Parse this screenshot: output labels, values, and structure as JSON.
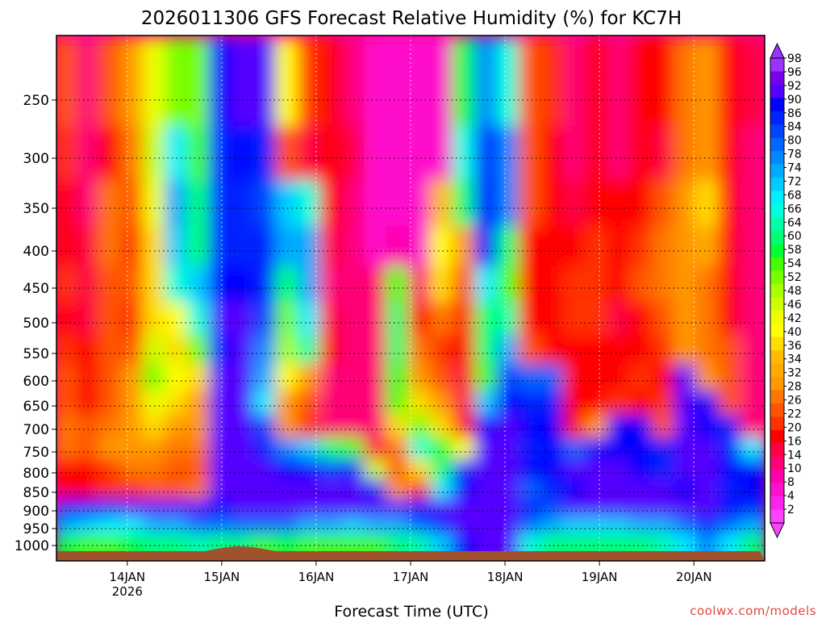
{
  "chart_data": {
    "type": "heatmap",
    "title": "2026011306 GFS Forecast Relative Humidity (%) for KC7H",
    "xlabel": "Forecast Time (UTC)",
    "ylabel": "",
    "x_ticks": [
      {
        "label": "14JAN",
        "sublabel": "2026",
        "time": "2026-01-14T00Z"
      },
      {
        "label": "15JAN",
        "sublabel": "",
        "time": "2026-01-15T00Z"
      },
      {
        "label": "16JAN",
        "sublabel": "",
        "time": "2026-01-16T00Z"
      },
      {
        "label": "17JAN",
        "sublabel": "",
        "time": "2026-01-17T00Z"
      },
      {
        "label": "18JAN",
        "sublabel": "",
        "time": "2026-01-18T00Z"
      },
      {
        "label": "19JAN",
        "sublabel": "",
        "time": "2026-01-19T00Z"
      },
      {
        "label": "20JAN",
        "sublabel": "",
        "time": "2026-01-20T00Z"
      }
    ],
    "xlim": [
      "2026-01-13T06Z",
      "2026-01-20T18Z"
    ],
    "y_axis": "pressure (hPa), decreasing upward",
    "y_ticks": [
      250,
      300,
      350,
      400,
      450,
      500,
      550,
      600,
      650,
      700,
      750,
      800,
      850,
      900,
      950,
      1000
    ],
    "ylim": [
      1000,
      200
    ],
    "grid": true,
    "colorbar": {
      "levels": [
        2,
        4,
        8,
        10,
        14,
        16,
        20,
        22,
        26,
        28,
        32,
        34,
        36,
        40,
        42,
        46,
        48,
        52,
        54,
        58,
        60,
        64,
        66,
        68,
        72,
        74,
        78,
        80,
        84,
        86,
        90,
        92,
        96,
        98
      ],
      "colors": [
        "#ff44ff",
        "#ff22ee",
        "#ff11cc",
        "#ff00aa",
        "#ff0077",
        "#ff0044",
        "#ff0000",
        "#ff3300",
        "#ff5500",
        "#ff7700",
        "#ff9900",
        "#ffaa00",
        "#ffbb00",
        "#ffdd00",
        "#ffff00",
        "#eeff00",
        "#ccff00",
        "#aaff00",
        "#77ff00",
        "#44ff00",
        "#00ff33",
        "#00ff77",
        "#00ffaa",
        "#00ffdd",
        "#00eeff",
        "#00ccff",
        "#00aaff",
        "#0088ff",
        "#0066ff",
        "#0044ff",
        "#0022ff",
        "#0000ff",
        "#5500ff",
        "#7700ee",
        "#9933ff"
      ],
      "placement": "right"
    },
    "terrain_color": "#a0522d",
    "grid_rows_hpa": [
      250,
      300,
      350,
      400,
      450,
      500,
      550,
      600,
      650,
      700,
      750,
      800,
      850,
      900,
      950,
      1000
    ],
    "rh_grid": [
      [
        22,
        12,
        22,
        30,
        42,
        52,
        52,
        90,
        92,
        94,
        40,
        20,
        16,
        10,
        6,
        4,
        4,
        4,
        58,
        78,
        66,
        22,
        20,
        12,
        16,
        12,
        16,
        16,
        26,
        28,
        16,
        14
      ],
      [
        20,
        10,
        16,
        26,
        46,
        70,
        54,
        86,
        90,
        88,
        22,
        14,
        16,
        14,
        4,
        4,
        4,
        4,
        66,
        86,
        78,
        22,
        18,
        12,
        18,
        12,
        16,
        14,
        26,
        30,
        16,
        12
      ],
      [
        18,
        12,
        26,
        24,
        42,
        74,
        60,
        88,
        88,
        84,
        72,
        66,
        18,
        12,
        4,
        4,
        4,
        34,
        60,
        90,
        78,
        22,
        18,
        14,
        18,
        16,
        18,
        24,
        28,
        36,
        18,
        10
      ],
      [
        18,
        14,
        26,
        20,
        36,
        72,
        60,
        88,
        88,
        88,
        76,
        74,
        14,
        12,
        4,
        8,
        4,
        40,
        28,
        90,
        60,
        16,
        18,
        16,
        20,
        16,
        20,
        26,
        28,
        32,
        18,
        10
      ],
      [
        20,
        14,
        24,
        22,
        38,
        66,
        72,
        90,
        90,
        88,
        60,
        74,
        10,
        10,
        10,
        54,
        10,
        38,
        22,
        70,
        56,
        18,
        16,
        20,
        20,
        16,
        24,
        26,
        30,
        26,
        18,
        10
      ],
      [
        18,
        14,
        22,
        20,
        38,
        40,
        66,
        92,
        92,
        84,
        52,
        68,
        14,
        10,
        12,
        62,
        16,
        26,
        20,
        62,
        64,
        16,
        16,
        20,
        20,
        14,
        16,
        24,
        28,
        26,
        18,
        10
      ],
      [
        20,
        16,
        22,
        22,
        46,
        36,
        52,
        90,
        92,
        78,
        50,
        64,
        16,
        12,
        12,
        60,
        26,
        20,
        18,
        60,
        74,
        22,
        16,
        18,
        16,
        16,
        18,
        20,
        30,
        26,
        24,
        10
      ],
      [
        22,
        16,
        24,
        28,
        52,
        40,
        36,
        92,
        92,
        74,
        40,
        30,
        12,
        10,
        10,
        58,
        30,
        22,
        14,
        54,
        84,
        80,
        80,
        16,
        18,
        18,
        20,
        18,
        92,
        30,
        22,
        10
      ],
      [
        24,
        18,
        24,
        30,
        44,
        36,
        30,
        92,
        92,
        70,
        30,
        22,
        12,
        12,
        10,
        56,
        38,
        30,
        14,
        72,
        90,
        88,
        88,
        18,
        16,
        20,
        18,
        20,
        92,
        90,
        22,
        10
      ],
      [
        26,
        22,
        26,
        30,
        36,
        30,
        28,
        92,
        94,
        84,
        30,
        20,
        12,
        10,
        12,
        38,
        52,
        38,
        18,
        90,
        92,
        90,
        90,
        16,
        28,
        90,
        90,
        22,
        92,
        90,
        88,
        12
      ],
      [
        26,
        22,
        30,
        28,
        30,
        26,
        26,
        94,
        94,
        88,
        78,
        72,
        60,
        56,
        14,
        26,
        66,
        58,
        40,
        94,
        94,
        88,
        90,
        80,
        90,
        90,
        90,
        86,
        94,
        92,
        88,
        70
      ],
      [
        16,
        16,
        20,
        26,
        26,
        24,
        22,
        94,
        94,
        92,
        90,
        90,
        84,
        86,
        46,
        22,
        38,
        60,
        88,
        92,
        94,
        90,
        90,
        92,
        92,
        92,
        90,
        88,
        92,
        92,
        90,
        90
      ],
      [
        18,
        18,
        20,
        20,
        22,
        24,
        26,
        92,
        94,
        92,
        94,
        92,
        92,
        92,
        88,
        30,
        16,
        70,
        90,
        92,
        94,
        80,
        86,
        90,
        92,
        92,
        92,
        92,
        90,
        92,
        88,
        90
      ],
      [
        90,
        90,
        88,
        92,
        92,
        94,
        94,
        90,
        94,
        94,
        94,
        94,
        94,
        94,
        92,
        92,
        90,
        92,
        94,
        94,
        94,
        86,
        84,
        92,
        92,
        92,
        92,
        92,
        92,
        92,
        90,
        86
      ],
      [
        74,
        72,
        70,
        70,
        74,
        76,
        80,
        82,
        82,
        80,
        82,
        76,
        74,
        72,
        74,
        76,
        80,
        86,
        94,
        94,
        94,
        80,
        76,
        72,
        72,
        72,
        74,
        76,
        82,
        86,
        80,
        74
      ],
      [
        58,
        56,
        56,
        58,
        60,
        62,
        64,
        60,
        60,
        56,
        58,
        56,
        54,
        56,
        56,
        60,
        64,
        72,
        90,
        94,
        94,
        66,
        62,
        60,
        60,
        60,
        62,
        64,
        70,
        78,
        70,
        60
      ]
    ],
    "rh_grid_columns": "32 equally spaced forecast times from 2026-01-13T06Z to 2026-01-20T18Z (6-hourly, approximate read-off)"
  },
  "colorbar_labels": [
    "98",
    "96",
    "92",
    "90",
    "86",
    "84",
    "80",
    "78",
    "74",
    "72",
    "68",
    "66",
    "64",
    "60",
    "58",
    "54",
    "52",
    "48",
    "46",
    "42",
    "40",
    "36",
    "34",
    "32",
    "28",
    "26",
    "22",
    "20",
    "16",
    "14",
    "10",
    "8",
    "4",
    "2"
  ],
  "watermark": "coolwx.com/models"
}
